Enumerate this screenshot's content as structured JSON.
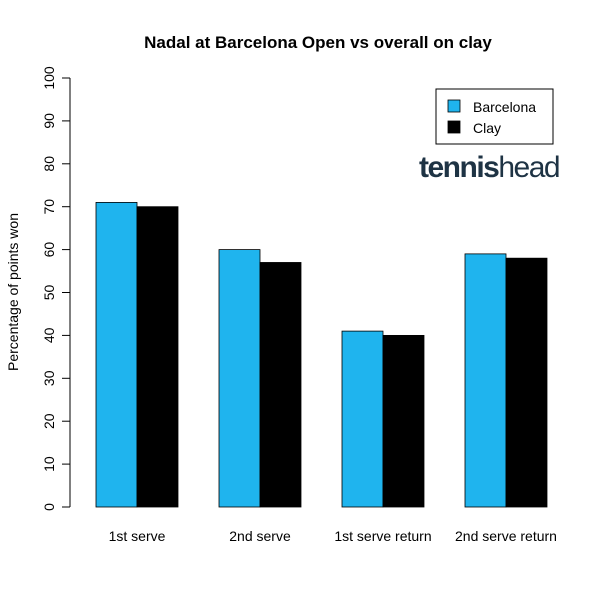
{
  "chart_data": {
    "type": "bar",
    "title": "Nadal at Barcelona Open vs overall on clay",
    "xlabel": "",
    "ylabel": "Percentage of points won",
    "categories": [
      "1st serve",
      "2nd serve",
      "1st serve return",
      "2nd serve return"
    ],
    "series": [
      {
        "name": "Barcelona",
        "values": [
          71,
          60,
          41,
          59
        ],
        "color": "#1fb4ee"
      },
      {
        "name": "Clay",
        "values": [
          70,
          57,
          40,
          58
        ],
        "color": "#000000"
      }
    ],
    "ylim": [
      0,
      100
    ],
    "yticks": [
      0,
      10,
      20,
      30,
      40,
      50,
      60,
      70,
      80,
      90,
      100
    ],
    "grid": false,
    "legend_position": "top-right"
  },
  "logo": {
    "part1": "tennis",
    "part2": "head",
    "color": "#1e3344"
  }
}
